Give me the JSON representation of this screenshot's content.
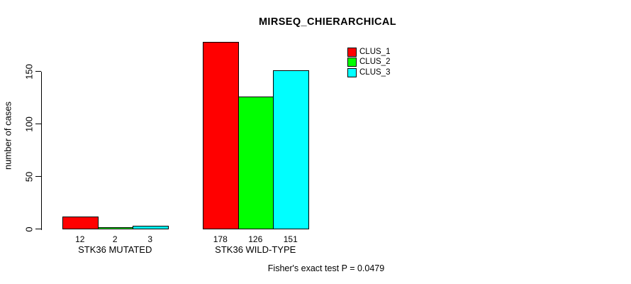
{
  "page": {
    "background_color": "#ffffff",
    "text_color": "#000000"
  },
  "chart_data": {
    "type": "bar",
    "title": "MIRSEQ_CHIERARCHICAL",
    "xlabel": "",
    "ylabel": "number of cases",
    "categories": [
      "STK36 MUTATED",
      "STK36 WILD-TYPE"
    ],
    "series": [
      {
        "name": "CLUS_1",
        "color": "#ff0000",
        "values": [
          12,
          178
        ]
      },
      {
        "name": "CLUS_2",
        "color": "#00ff00",
        "values": [
          2,
          126
        ]
      },
      {
        "name": "CLUS_3",
        "color": "#00ffff",
        "values": [
          3,
          151
        ]
      }
    ],
    "yticks": [
      0,
      50,
      100,
      150
    ],
    "ylim": [
      0,
      178
    ],
    "grid": false,
    "bar_value_labels_shown": true,
    "legend_position": "top-right",
    "legend_entries": [
      {
        "label": "CLUS_1",
        "color": "#ff0000"
      },
      {
        "label": "CLUS_2",
        "color": "#00ff00"
      },
      {
        "label": "CLUS_3",
        "color": "#00ffff"
      }
    ],
    "annotation": "Fisher's exact test P = 0.0479"
  }
}
